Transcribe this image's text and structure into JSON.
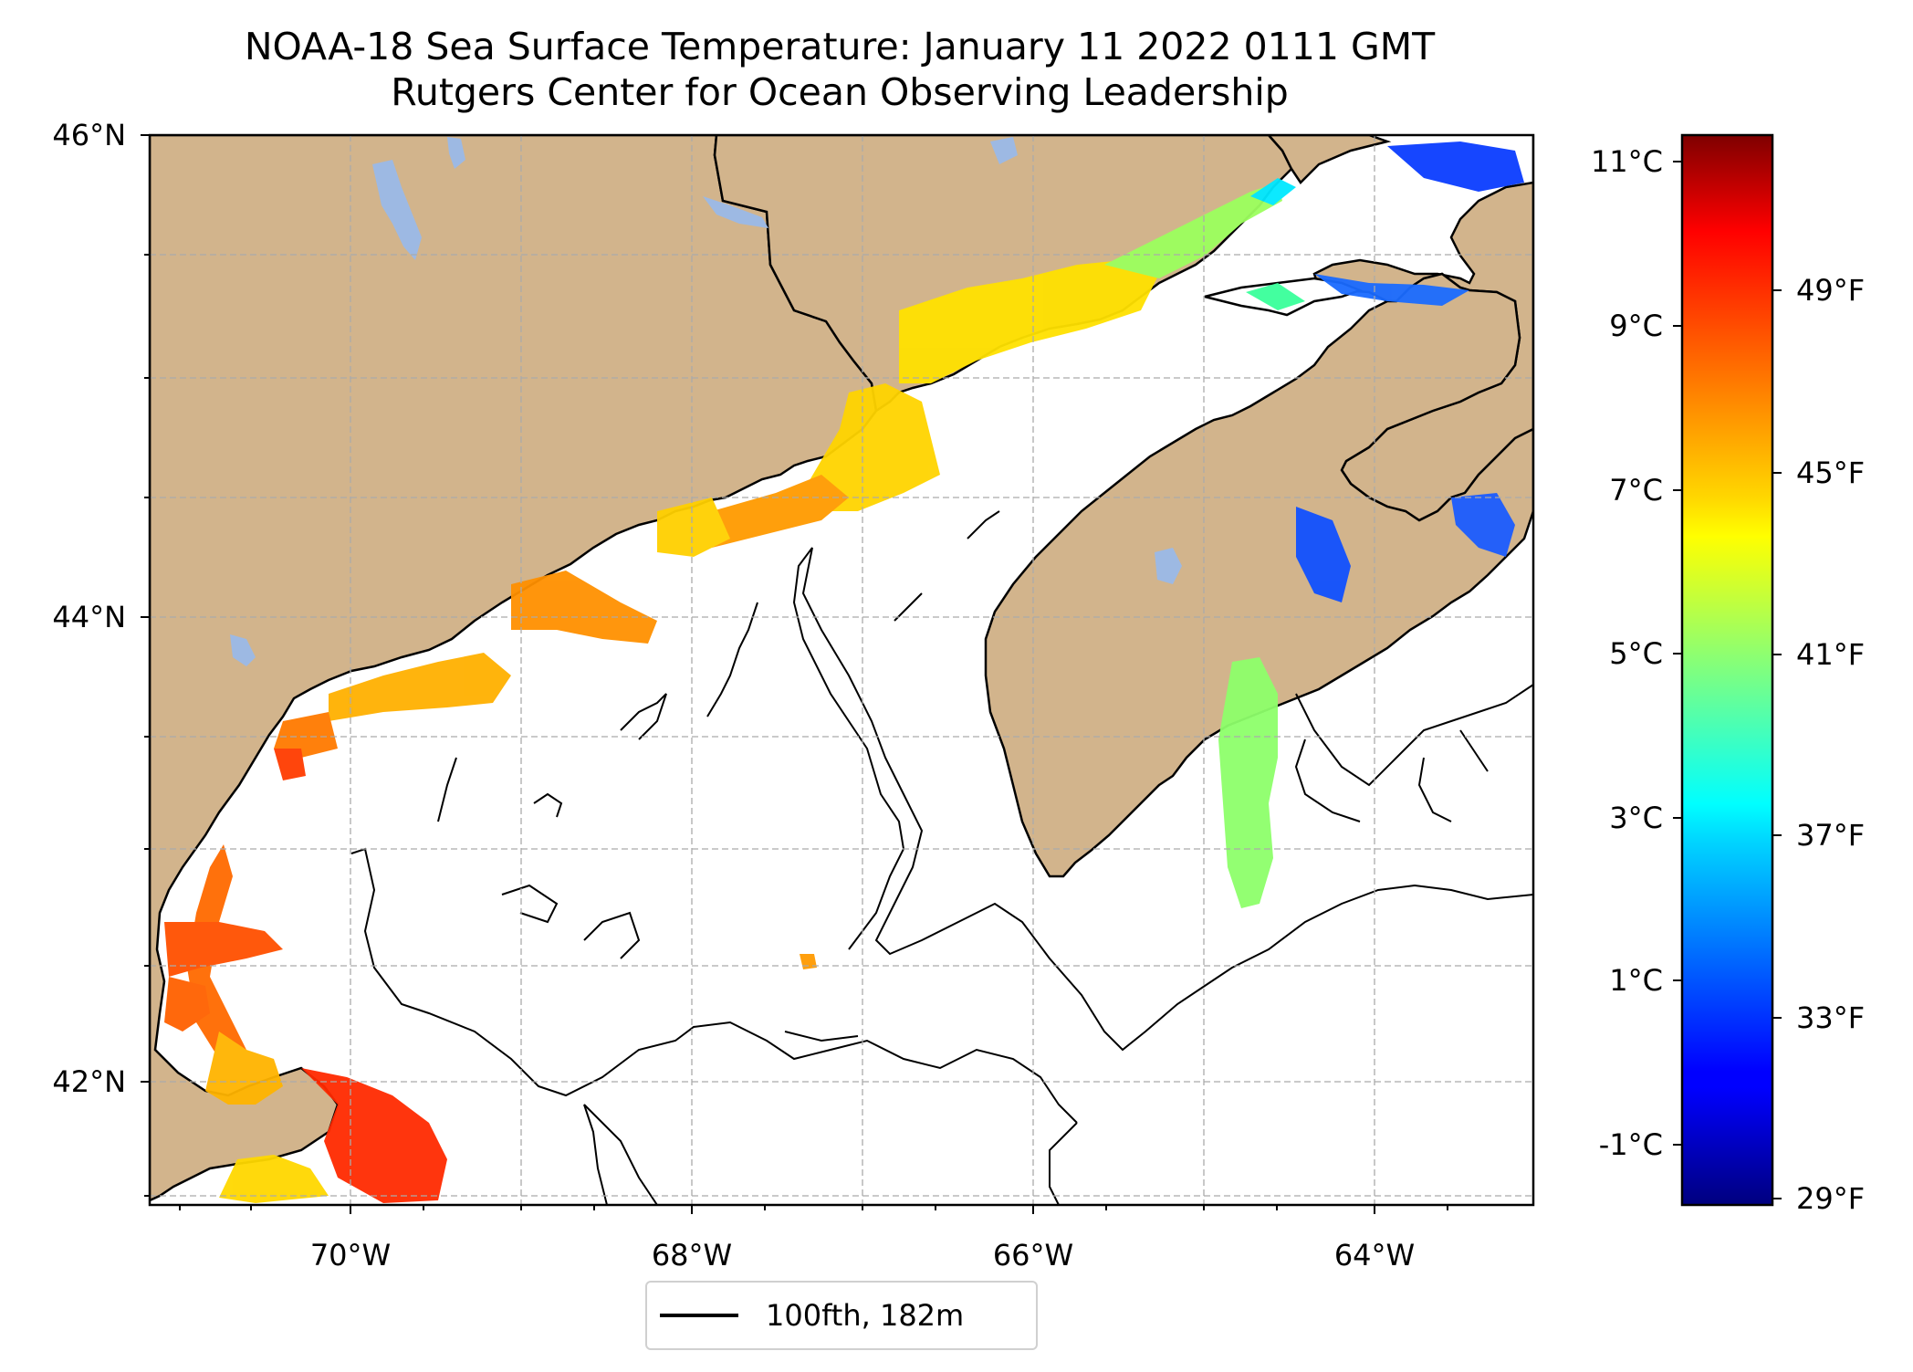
{
  "title": {
    "line1": "NOAA-18 Sea Surface Temperature: January 11 2022 0111 GMT",
    "line2": "Rutgers Center for Ocean Observing Leadership"
  },
  "map": {
    "lon_range": [
      -71.0,
      -62.9
    ],
    "lat_range": [
      41.5,
      46.0
    ],
    "lat_ticks": [
      "46°N",
      "44°N",
      "42°N"
    ],
    "lon_ticks": [
      "70°W",
      "68°W",
      "66°W",
      "64°W"
    ],
    "land_color": "#d2b48c",
    "water_color": "#ffffff",
    "lake_color": "#9db9e3"
  },
  "colorbar": {
    "colormap": "jet",
    "celsius_ticks": [
      "11°C",
      "9°C",
      "7°C",
      "5°C",
      "3°C",
      "1°C",
      "-1°C"
    ],
    "fahrenheit_ticks": [
      "49°F",
      "45°F",
      "41°F",
      "37°F",
      "33°F",
      "29°F"
    ]
  },
  "legend": {
    "label": "100fth, 182m"
  }
}
